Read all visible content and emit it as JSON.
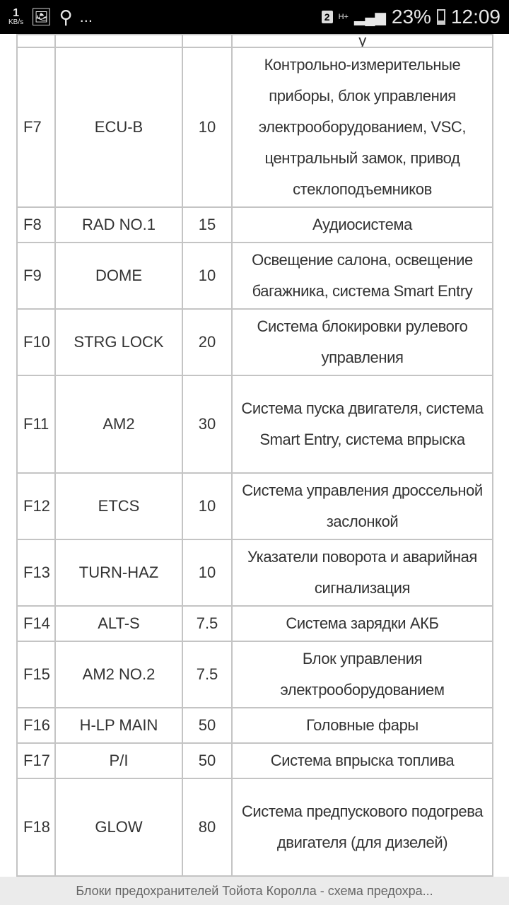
{
  "status_bar": {
    "net_speed": "1",
    "net_unit": "KB/s",
    "more": "...",
    "sim": "2",
    "network": "H+",
    "battery": "23%",
    "battery_level": 0.23,
    "time": "12:09"
  },
  "table": {
    "rows": [
      {
        "id": "",
        "name": "",
        "amp": "",
        "desc": "у"
      },
      {
        "id": "F7",
        "name": "ECU-B",
        "amp": "10",
        "desc": "Контрольно-измерительные приборы, блок управления электрооборудованием, VSC, центральный замок, привод стеклоподъемников"
      },
      {
        "id": "F8",
        "name": "RAD NO.1",
        "amp": "15",
        "desc": "Аудиосистема"
      },
      {
        "id": "F9",
        "name": "DOME",
        "amp": "10",
        "desc": "Освещение салона, освещение багажника, система Smart Entry"
      },
      {
        "id": "F10",
        "name": "STRG LOCK",
        "amp": "20",
        "desc": "Система блокировки рулевого управления"
      },
      {
        "id": "F11",
        "name": "AM2",
        "amp": "30",
        "desc": "Система пуска двигателя, система Smart Entry, система впрыска"
      },
      {
        "id": "F12",
        "name": "ETCS",
        "amp": "10",
        "desc": "Система управления дроссельной заслонкой"
      },
      {
        "id": "F13",
        "name": "TURN-HAZ",
        "amp": "10",
        "desc": "Указатели поворота и аварийная сигнализация"
      },
      {
        "id": "F14",
        "name": "ALT-S",
        "amp": "7.5",
        "desc": "Система зарядки АКБ"
      },
      {
        "id": "F15",
        "name": "AM2 NO.2",
        "amp": "7.5",
        "desc": "Блок управления электрооборудованием"
      },
      {
        "id": "F16",
        "name": "H-LP MAIN",
        "amp": "50",
        "desc": "Головные фары"
      },
      {
        "id": "F17",
        "name": "P/I",
        "amp": "50",
        "desc": "Система впрыска топлива"
      },
      {
        "id": "F18",
        "name": "GLOW",
        "amp": "80",
        "desc": "Система предпускового подогрева двигателя (для дизелей)"
      },
      {
        "id": "",
        "name": "",
        "amp": "",
        "desc": ""
      }
    ]
  },
  "bottom_bar": {
    "title": "Блоки предохранителей Тойота Королла - схема предохра..."
  }
}
